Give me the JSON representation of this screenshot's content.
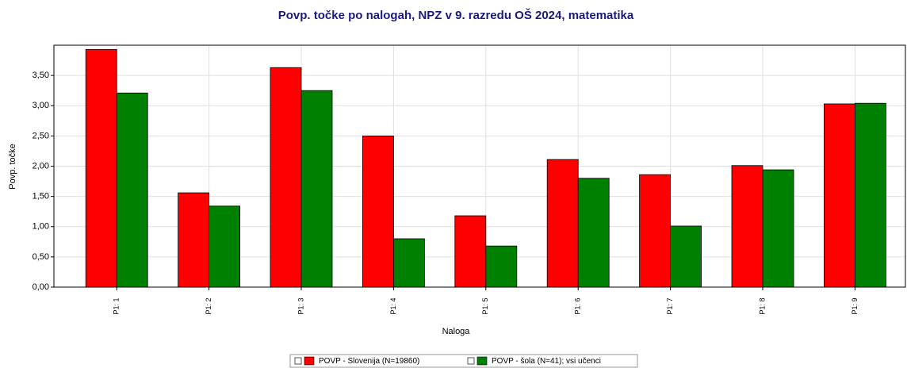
{
  "chart_data": {
    "type": "bar",
    "title": "Povp. točke po nalogah, NPZ v 9. razredu OŠ 2024, matematika",
    "x_label": "Naloga",
    "y_label": "Povp. točke",
    "categories": [
      "P1: 1",
      "P1: 2",
      "P1: 3",
      "P1: 4",
      "P1: 5",
      "P1: 6",
      "P1: 7",
      "P1: 8",
      "P1: 9"
    ],
    "series": [
      {
        "name": "POVP - Slovenija (N=19860)",
        "color": "#ff0000",
        "values": [
          3.93,
          1.56,
          3.63,
          2.5,
          1.18,
          2.11,
          1.86,
          2.01,
          3.03
        ]
      },
      {
        "name": "POVP - šola (N=41); vsi učenci",
        "color": "#008000",
        "values": [
          3.21,
          1.34,
          3.25,
          0.8,
          0.68,
          1.8,
          1.01,
          1.94,
          3.04
        ]
      }
    ],
    "ylim": [
      0,
      4
    ],
    "yticks": [
      {
        "value": 0,
        "label": "0,00"
      },
      {
        "value": 0.5,
        "label": "0,50"
      },
      {
        "value": 1,
        "label": "1,00"
      },
      {
        "value": 1.5,
        "label": "1,50"
      },
      {
        "value": 2,
        "label": "2,00"
      },
      {
        "value": 2.5,
        "label": "2,50"
      },
      {
        "value": 3,
        "label": "3,00"
      },
      {
        "value": 3.5,
        "label": "3,50"
      }
    ],
    "grid": true,
    "legend": "bottom"
  }
}
